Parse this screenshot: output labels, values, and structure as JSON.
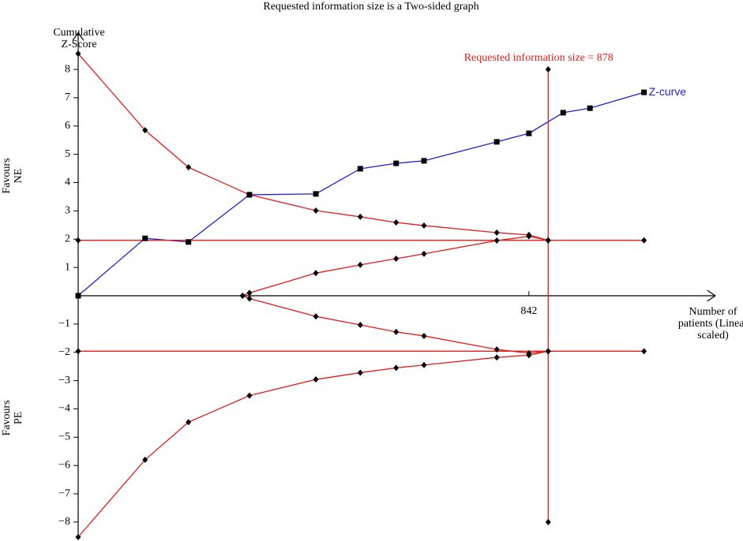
{
  "chart_data": {
    "type": "line",
    "title": "Requested information size is a Two-sided graph",
    "ylabel": "Cumulative Z-Score",
    "xlabel": "Number of patients (Linear scaled)",
    "annotations": {
      "upper": "Favours NE",
      "lower": "Favours PE",
      "ris": "Requested information size = 878"
    },
    "xlim": [
      0,
      1190
    ],
    "ylim": [
      -8.6,
      9.3
    ],
    "xticks": [
      842
    ],
    "yticks": [
      {
        "value": -8,
        "label": "−8"
      },
      {
        "value": -7,
        "label": "−7"
      },
      {
        "value": -6,
        "label": "−6"
      },
      {
        "value": -5,
        "label": "−5"
      },
      {
        "value": -4,
        "label": "−4"
      },
      {
        "value": -3,
        "label": "−3"
      },
      {
        "value": -2,
        "label": "−2"
      },
      {
        "value": -1,
        "label": "−1"
      },
      1,
      2,
      3,
      4,
      5,
      6,
      7,
      8
    ],
    "series": [
      {
        "name": "Z-curve",
        "color": "#1f1fd6",
        "marker": "square",
        "x": [
          0,
          125,
          206,
          320,
          444,
          527,
          594,
          646,
          782,
          842,
          906,
          956,
          1057
        ],
        "values": [
          0,
          2.03,
          1.9,
          3.57,
          3.6,
          4.49,
          4.68,
          4.77,
          5.44,
          5.74,
          6.47,
          6.63,
          7.19
        ]
      },
      {
        "color": "#e51c1c",
        "marker": "diamond",
        "x": [
          0,
          125,
          206,
          320,
          444,
          527,
          594,
          646,
          782,
          842,
          878
        ],
        "values": [
          8.56,
          5.85,
          4.54,
          3.57,
          3.01,
          2.79,
          2.59,
          2.48,
          2.23,
          2.15,
          1.96
        ]
      },
      {
        "color": "#e51c1c",
        "marker": "diamond",
        "x": [
          0,
          125,
          206,
          320,
          444,
          527,
          594,
          646,
          782,
          842,
          878
        ],
        "values": [
          -8.53,
          -5.8,
          -4.47,
          -3.53,
          -2.96,
          -2.72,
          -2.55,
          -2.45,
          -2.18,
          -2.1,
          -1.96
        ]
      },
      {
        "color": "#e51c1c",
        "marker": "diamond",
        "x": [
          307,
          320,
          444,
          527,
          594,
          646,
          782,
          842,
          878
        ],
        "values": [
          0,
          0.1,
          0.8,
          1.09,
          1.31,
          1.48,
          1.95,
          2.1,
          1.96
        ]
      },
      {
        "color": "#e51c1c",
        "marker": "diamond",
        "x": [
          307,
          320,
          444,
          527,
          594,
          646,
          782,
          842,
          878
        ],
        "values": [
          0,
          -0.1,
          -0.73,
          -1.03,
          -1.28,
          -1.42,
          -1.9,
          -2.03,
          -1.96
        ]
      },
      {
        "color": "#e51c1c",
        "marker": "diamond",
        "x": [
          0,
          878,
          1057
        ],
        "values": [
          1.96,
          1.96,
          1.96
        ]
      },
      {
        "color": "#e51c1c",
        "marker": "diamond",
        "x": [
          0,
          878,
          1057
        ],
        "values": [
          -1.96,
          -1.96,
          -1.96
        ]
      },
      {
        "color": "#e51c1c",
        "marker": "diamond",
        "x": [
          878,
          878
        ],
        "values": [
          -8,
          8
        ]
      }
    ]
  }
}
